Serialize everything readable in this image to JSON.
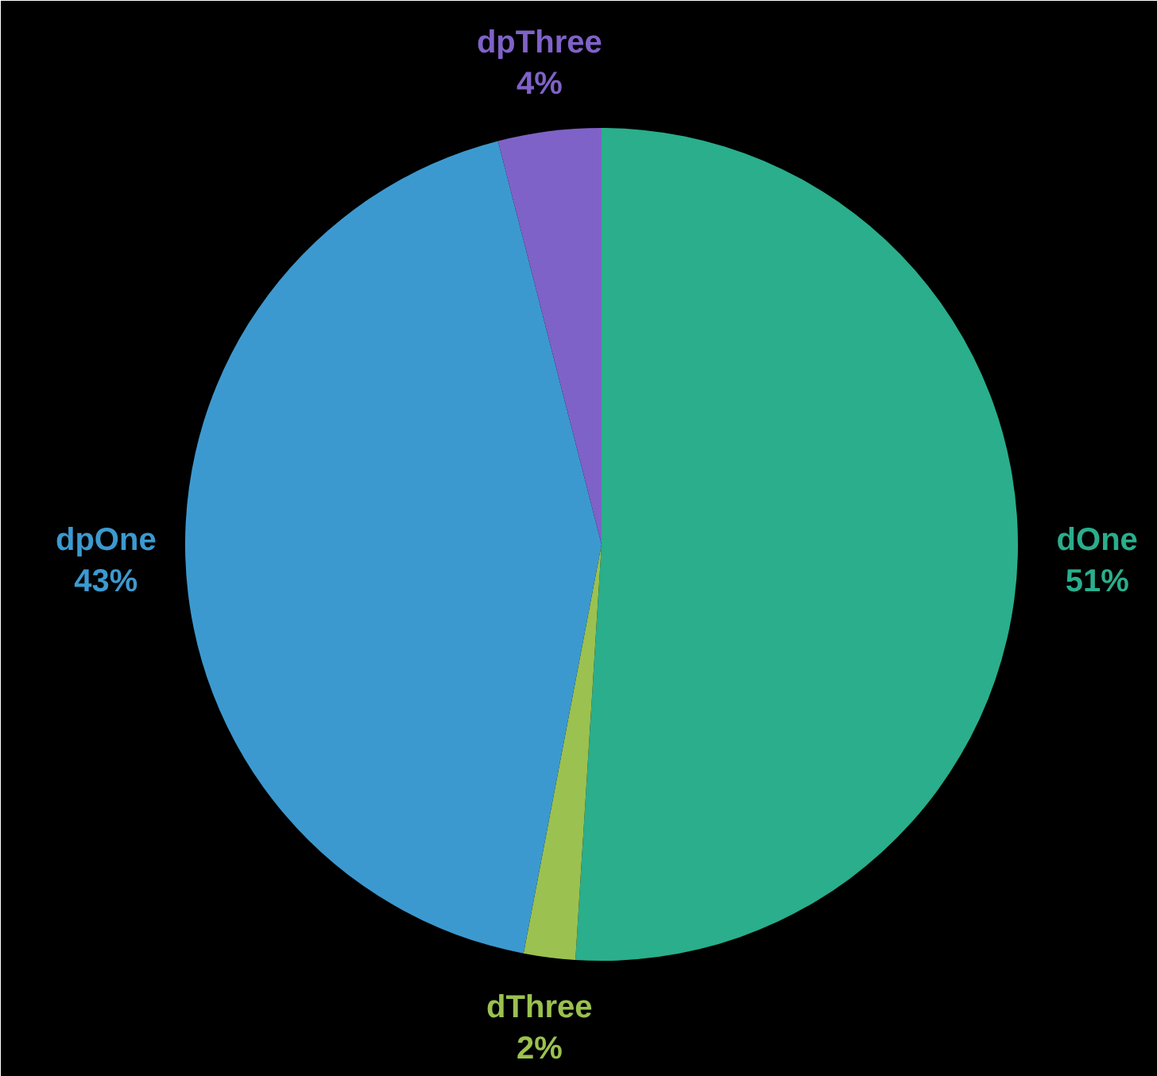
{
  "chart_data": {
    "type": "pie",
    "categories": [
      "dOne",
      "dThree",
      "dpOne",
      "dpThree"
    ],
    "values": [
      51,
      2,
      43,
      4
    ],
    "colors": [
      "#2aae8c",
      "#9bc150",
      "#3c99cf",
      "#7f62c8"
    ],
    "value_labels": [
      "51%",
      "2%",
      "43%",
      "4%"
    ]
  }
}
